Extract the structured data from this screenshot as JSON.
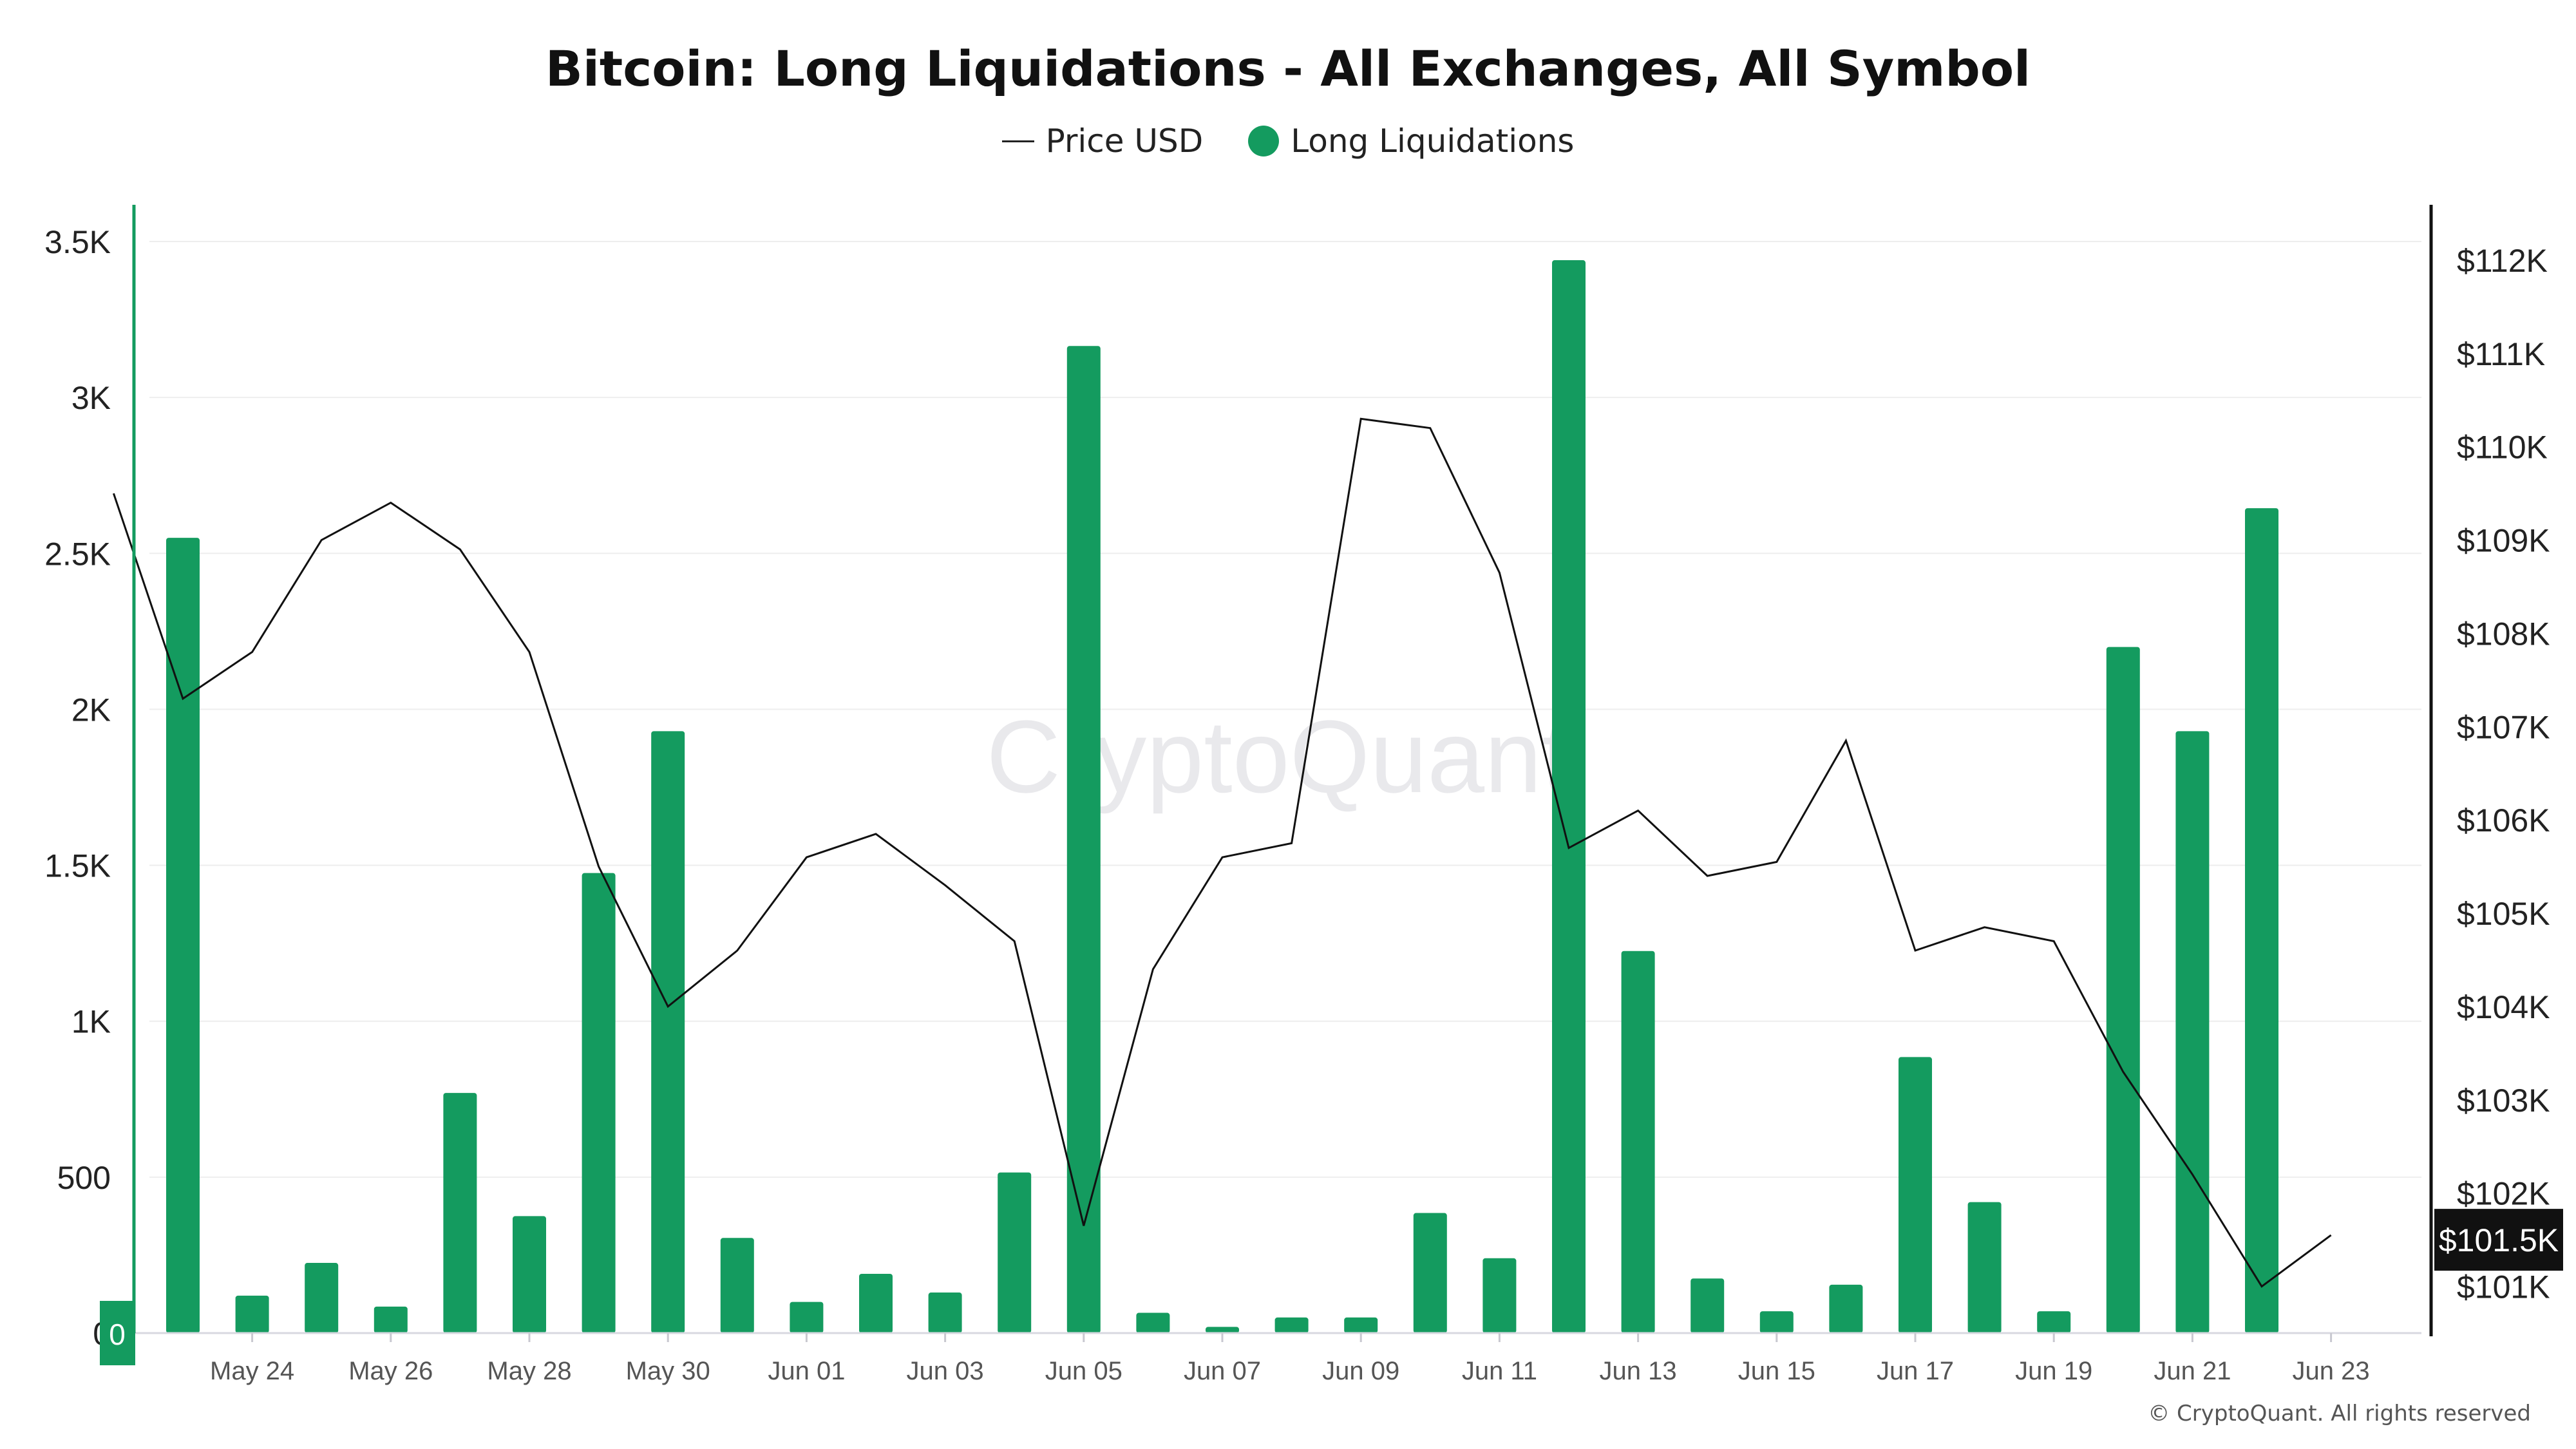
{
  "chart_data": {
    "type": "bar",
    "title": "Bitcoin: Long Liquidations - All Exchanges, All Symbol",
    "watermark": "CryptoQuant",
    "copyright": "© CryptoQuant. All rights reserved",
    "legend": {
      "position": "top-center",
      "items": [
        "Price USD",
        "Long Liquidations"
      ]
    },
    "colors": {
      "bars": "#149b5f",
      "price_line": "#111111",
      "left_axis": "#149b5f",
      "right_axis": "#111111",
      "grid": "#eeeeee",
      "badge_bg": "#111111",
      "badge_text": "#ffffff"
    },
    "grid": true,
    "x": [
      "May 23",
      "May 24",
      "May 25",
      "May 26",
      "May 27",
      "May 28",
      "May 29",
      "May 30",
      "May 31",
      "Jun 01",
      "Jun 02",
      "Jun 03",
      "Jun 04",
      "Jun 05",
      "Jun 06",
      "Jun 07",
      "Jun 08",
      "Jun 09",
      "Jun 10",
      "Jun 11",
      "Jun 12",
      "Jun 13",
      "Jun 14",
      "Jun 15",
      "Jun 16",
      "Jun 17",
      "Jun 18",
      "Jun 19",
      "Jun 20",
      "Jun 21",
      "Jun 22",
      "Jun 23"
    ],
    "x_tick_labels": [
      "May 24",
      "May 26",
      "May 28",
      "May 30",
      "Jun 01",
      "Jun 03",
      "Jun 05",
      "Jun 07",
      "Jun 09",
      "Jun 11",
      "Jun 13",
      "Jun 15",
      "Jun 17",
      "Jun 19",
      "Jun 21",
      "Jun 23"
    ],
    "series": [
      {
        "name": "Long Liquidations",
        "type": "bar",
        "axis": "left",
        "x": [
          "May 23",
          "May 24",
          "May 25",
          "May 26",
          "May 27",
          "May 28",
          "May 29",
          "May 30",
          "May 31",
          "Jun 01",
          "Jun 02",
          "Jun 03",
          "Jun 04",
          "Jun 05",
          "Jun 06",
          "Jun 07",
          "Jun 08",
          "Jun 09",
          "Jun 10",
          "Jun 11",
          "Jun 12",
          "Jun 13",
          "Jun 14",
          "Jun 15",
          "Jun 16",
          "Jun 17",
          "Jun 18",
          "Jun 19",
          "Jun 20",
          "Jun 21",
          "Jun 22"
        ],
        "values": [
          2550,
          120,
          225,
          85,
          770,
          375,
          1475,
          1930,
          305,
          100,
          190,
          130,
          515,
          3165,
          65,
          20,
          50,
          50,
          385,
          240,
          3440,
          1225,
          175,
          70,
          155,
          885,
          420,
          70,
          2200,
          1930,
          2645
        ]
      },
      {
        "name": "Price USD",
        "type": "line",
        "axis": "right",
        "x": [
          "May 22",
          "May 23",
          "May 24",
          "May 25",
          "May 26",
          "May 27",
          "May 28",
          "May 29",
          "May 30",
          "May 31",
          "Jun 01",
          "Jun 02",
          "Jun 03",
          "Jun 04",
          "Jun 05",
          "Jun 06",
          "Jun 07",
          "Jun 08",
          "Jun 09",
          "Jun 10",
          "Jun 11",
          "Jun 12",
          "Jun 13",
          "Jun 14",
          "Jun 15",
          "Jun 16",
          "Jun 17",
          "Jun 18",
          "Jun 19",
          "Jun 20",
          "Jun 21",
          "Jun 22",
          "Jun 23"
        ],
        "values": [
          109500,
          107300,
          107800,
          109000,
          109400,
          108900,
          107800,
          105500,
          104000,
          104600,
          105600,
          105850,
          105300,
          104700,
          101650,
          104400,
          105600,
          105750,
          110300,
          110200,
          108650,
          105700,
          106100,
          105400,
          105550,
          106850,
          104600,
          104850,
          104700,
          103300,
          102200,
          101000,
          101550
        ]
      }
    ],
    "y_left": {
      "ylim": [
        0,
        3500
      ],
      "ticks": [
        0,
        500,
        1000,
        1500,
        2000,
        2500,
        3000,
        3500
      ],
      "tick_labels": [
        "0",
        "500",
        "1K",
        "1.5K",
        "2K",
        "2.5K",
        "3K",
        "3.5K"
      ]
    },
    "y_right": {
      "ylim": [
        100500,
        112200
      ],
      "ticks": [
        101000,
        102000,
        103000,
        104000,
        105000,
        106000,
        107000,
        108000,
        109000,
        110000,
        111000,
        112000
      ],
      "tick_labels": [
        "$101K",
        "$102K",
        "$103K",
        "$104K",
        "$105K",
        "$106K",
        "$107K",
        "$108K",
        "$109K",
        "$110K",
        "$111K",
        "$112K"
      ]
    },
    "badges": {
      "right_value": "$101.5K",
      "right_value_number": 101500,
      "left_value": "0",
      "left_value_number": 0
    }
  }
}
